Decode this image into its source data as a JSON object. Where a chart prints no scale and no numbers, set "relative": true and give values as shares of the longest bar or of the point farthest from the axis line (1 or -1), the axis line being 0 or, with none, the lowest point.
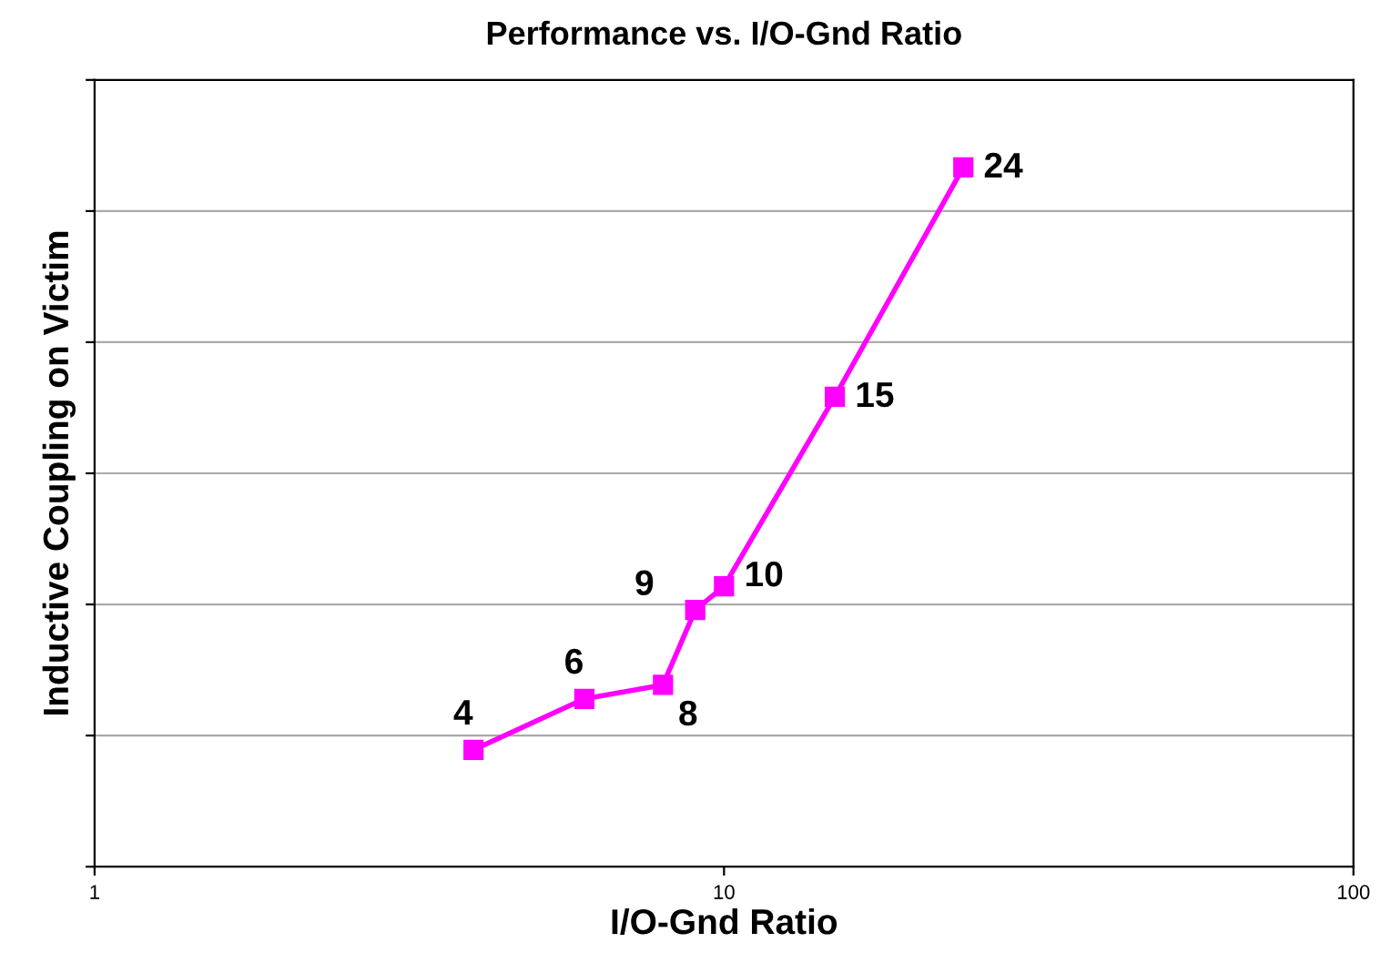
{
  "chart_data": {
    "type": "line",
    "title": "Performance vs. I/O-Gnd Ratio",
    "xlabel": "I/O-Gnd Ratio",
    "ylabel": "Inductive Coupling on Victim",
    "log": "x",
    "xlim": [
      1,
      100
    ],
    "xticks": [
      1,
      10,
      100
    ],
    "relative": true,
    "tick_labels": "x",
    "grid": "y",
    "legend": false,
    "marker": "square",
    "line_style": "solid",
    "x": [
      4,
      6,
      8,
      9,
      10,
      15,
      24
    ],
    "series": [
      {
        "color": "#ff00ff",
        "values": [
          0.167,
          0.24,
          0.26,
          0.367,
          0.401,
          0.672,
          1.0
        ]
      }
    ],
    "annotations": [
      {
        "text": "4",
        "x": 4,
        "y": 0.167
      },
      {
        "text": "6",
        "x": 6,
        "y": 0.24
      },
      {
        "text": "8",
        "x": 8,
        "y": 0.26
      },
      {
        "text": "9",
        "x": 9,
        "y": 0.367
      },
      {
        "text": "10",
        "x": 10,
        "y": 0.401
      },
      {
        "text": "15",
        "x": 15,
        "y": 0.672
      },
      {
        "text": "24",
        "x": 24,
        "y": 1.0
      }
    ]
  }
}
